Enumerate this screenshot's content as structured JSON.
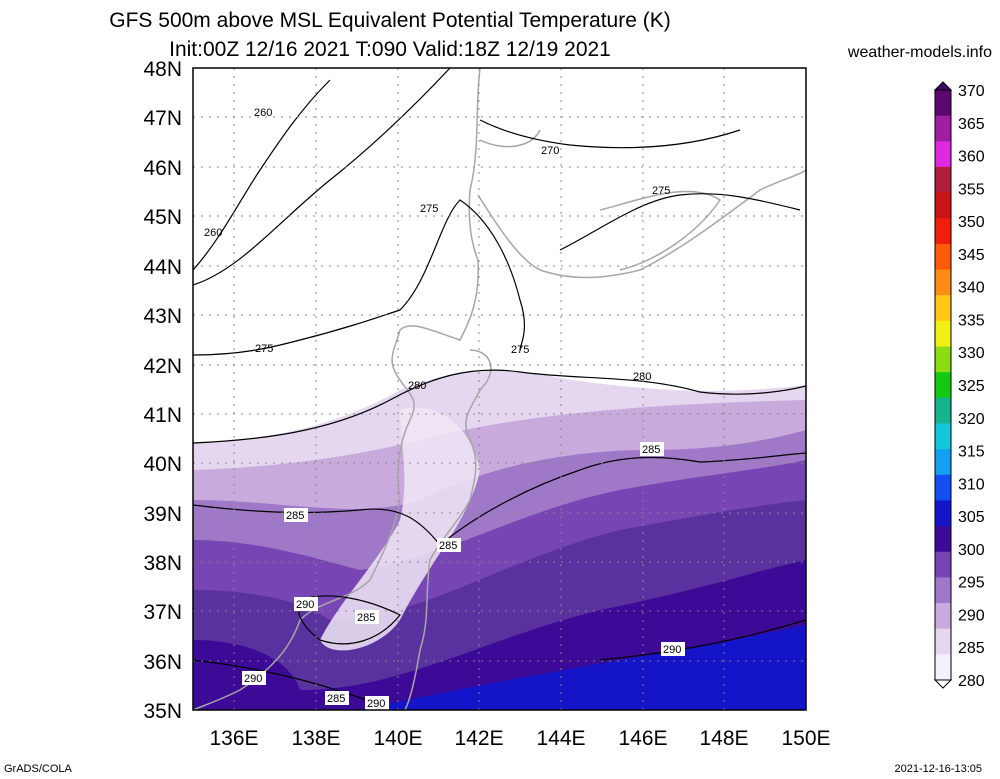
{
  "title": {
    "line1": "GFS 500m above MSL Equivalent Potential Temperature (K)",
    "line2": "Init:00Z 12/16 2021 T:090 Valid:18Z 12/19 2021"
  },
  "site": "weather-models.info",
  "footer": {
    "left": "GrADS/COLA",
    "right": "2021-12-16-13:05"
  },
  "lat_labels": [
    "48N",
    "47N",
    "46N",
    "45N",
    "44N",
    "43N",
    "42N",
    "41N",
    "40N",
    "39N",
    "38N",
    "37N",
    "36N",
    "35N"
  ],
  "lon_labels": [
    "136E",
    "138E",
    "140E",
    "142E",
    "144E",
    "146E",
    "148E",
    "150E"
  ],
  "colorbar": {
    "labels": [
      "370",
      "365",
      "360",
      "355",
      "350",
      "345",
      "340",
      "335",
      "330",
      "325",
      "320",
      "315",
      "310",
      "305",
      "300",
      "295",
      "290",
      "285",
      "280"
    ],
    "colors": [
      "#5a0a6e",
      "#a01ea0",
      "#e028e0",
      "#b01e3c",
      "#c81414",
      "#f01e0a",
      "#ff5a0a",
      "#ff8c14",
      "#ffc814",
      "#f0f014",
      "#8cdc14",
      "#14c814",
      "#14b48c",
      "#14c8dc",
      "#14a0f0",
      "#1450f0",
      "#1414c8",
      "#3c0a96",
      "#7846b4",
      "#a078c8",
      "#c8aadc",
      "#e6d7f0",
      "#f5f0fa"
    ]
  },
  "contour_labels": [
    "260",
    "260",
    "270",
    "275",
    "275",
    "275",
    "275",
    "280",
    "280",
    "285",
    "285",
    "285",
    "285",
    "290",
    "290",
    "290",
    "290",
    "285"
  ]
}
